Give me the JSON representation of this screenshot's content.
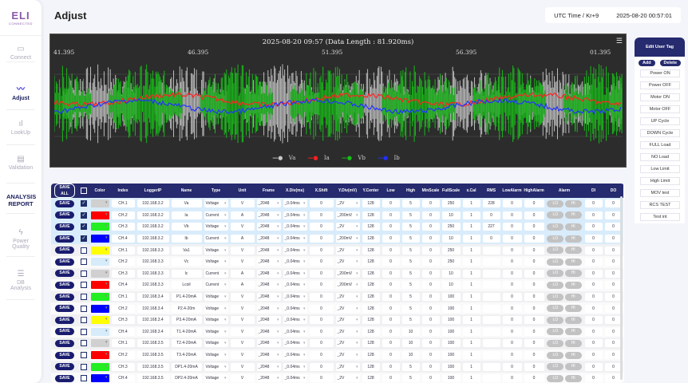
{
  "app": {
    "logo": "ELI",
    "logo_sub": "CONNECTED",
    "title": "Adjust"
  },
  "sidebar": [
    {
      "label": "Connect",
      "icon": "router-icon"
    },
    {
      "label": "Adjust",
      "icon": "waveform-icon",
      "active": true
    },
    {
      "label": "LookUp",
      "icon": "bar-chart-icon"
    },
    {
      "label": "Validation",
      "icon": "document-check-icon"
    },
    {
      "label": "ANALYSIS REPORT",
      "icon": ""
    },
    {
      "label": "Power Quality",
      "icon": "lightning-icon"
    },
    {
      "label": "DB Analysis",
      "icon": "database-icon"
    }
  ],
  "header": {
    "tz_label": "UTC Time / Kr+9",
    "datetime": "2025-08-20 00:57:01"
  },
  "chart": {
    "title": "2025-08-20 09:57 (Data Length : 81.920ms)",
    "x_ticks": [
      "41.395",
      "46.395",
      "51.395",
      "56.395",
      "01.395"
    ],
    "legend": [
      {
        "name": "Va",
        "color": "#c8c8c8"
      },
      {
        "name": "Ia",
        "color": "#ff2020"
      },
      {
        "name": "Vb",
        "color": "#18c018"
      },
      {
        "name": "Ib",
        "color": "#2030ff"
      }
    ],
    "menu_icon": "hamburger-icon"
  },
  "tags": {
    "title": "Edit User Tag",
    "add": "Add",
    "delete": "Delete",
    "items": [
      "Power ON",
      "Power OFF",
      "Motor ON",
      "Motor OFF",
      "UP Cycle",
      "DOWN Cycle",
      "FULL Load",
      "NO Load",
      "Low Limit",
      "High Limit",
      "MOV test",
      "RCS TEST",
      "Test int"
    ]
  },
  "table": {
    "save_all": "SAVE ALL",
    "save": "SAVE",
    "lo": "LO",
    "hi": "HI",
    "headers": [
      "Color",
      "Index",
      "LoggerIP",
      "Name",
      "Type",
      "Unit",
      "Frame",
      "X.Div(ms)",
      "X.Shift",
      "Y.Div(mV)",
      "Y.Center",
      "Low",
      "High",
      "MinScale",
      "FullScale",
      "x.Cal",
      "RMS",
      "LowAlarm",
      "HighAlarm",
      "Alarm",
      "DI",
      "DO"
    ],
    "rows": [
      {
        "checked": true,
        "color": "#d0d0d0",
        "index": "CH.1",
        "ip": "192.168.3.2",
        "name": "Va",
        "type": "Voltage",
        "unit": "V",
        "frame": "_2048",
        "xdiv": "_0.04ms",
        "xshift": "0",
        "ydiv": "_2V",
        "ycenter": "128",
        "low": "0",
        "high": "5",
        "min": "0",
        "full": "250",
        "xcal": "1",
        "rms": "228",
        "lowalarm": "0",
        "highalarm": "0",
        "di": "0",
        "do": "0"
      },
      {
        "checked": true,
        "color": "#ff0000",
        "index": "CH.2",
        "ip": "192.168.3.2",
        "name": "Ia",
        "type": "Current",
        "unit": "A",
        "frame": "_2048",
        "xdiv": "_0.04ms",
        "xshift": "0",
        "ydiv": "_200mV",
        "ycenter": "128",
        "low": "0",
        "high": "5",
        "min": "0",
        "full": "10",
        "xcal": "1",
        "rms": "0",
        "lowalarm": "0",
        "highalarm": "0",
        "di": "0",
        "do": "0"
      },
      {
        "checked": true,
        "color": "#22ee22",
        "index": "CH.3",
        "ip": "192.168.3.2",
        "name": "Vb",
        "type": "Voltage",
        "unit": "V",
        "frame": "_2048",
        "xdiv": "_0.04ms",
        "xshift": "0",
        "ydiv": "_2V",
        "ycenter": "128",
        "low": "0",
        "high": "5",
        "min": "0",
        "full": "250",
        "xcal": "1",
        "rms": "227",
        "lowalarm": "0",
        "highalarm": "0",
        "di": "0",
        "do": "0"
      },
      {
        "checked": true,
        "color": "#0000ff",
        "index": "CH.4",
        "ip": "192.168.3.2",
        "name": "Ib",
        "type": "Current",
        "unit": "A",
        "frame": "_2048",
        "xdiv": "_0.04ms",
        "xshift": "0",
        "ydiv": "_200mV",
        "ycenter": "128",
        "low": "0",
        "high": "5",
        "min": "0",
        "full": "10",
        "xcal": "1",
        "rms": "0",
        "lowalarm": "0",
        "highalarm": "0",
        "di": "0",
        "do": "0"
      },
      {
        "checked": false,
        "color": "#ffff00",
        "index": "CH.1",
        "ip": "192.168.3.3",
        "name": "Va1",
        "type": "Voltage",
        "unit": "V",
        "frame": "_2048",
        "xdiv": "_0.04ms",
        "xshift": "0",
        "ydiv": "_2V",
        "ycenter": "128",
        "low": "0",
        "high": "5",
        "min": "0",
        "full": "250",
        "xcal": "1",
        "rms": "",
        "lowalarm": "0",
        "highalarm": "0",
        "di": "0",
        "do": "0"
      },
      {
        "checked": false,
        "color": "#d6ecfb",
        "index": "CH.2",
        "ip": "192.168.3.3",
        "name": "Vc",
        "type": "Voltage",
        "unit": "V",
        "frame": "_2048",
        "xdiv": "_0.04ms",
        "xshift": "0",
        "ydiv": "_2V",
        "ycenter": "128",
        "low": "0",
        "high": "5",
        "min": "0",
        "full": "250",
        "xcal": "1",
        "rms": "",
        "lowalarm": "0",
        "highalarm": "0",
        "di": "0",
        "do": "0"
      },
      {
        "checked": false,
        "color": "#d0d0d0",
        "index": "CH.3",
        "ip": "192.168.3.3",
        "name": "Ic",
        "type": "Current",
        "unit": "A",
        "frame": "_2048",
        "xdiv": "_0.04ms",
        "xshift": "0",
        "ydiv": "_200mV",
        "ycenter": "128",
        "low": "0",
        "high": "5",
        "min": "0",
        "full": "10",
        "xcal": "1",
        "rms": "",
        "lowalarm": "0",
        "highalarm": "0",
        "di": "0",
        "do": "0"
      },
      {
        "checked": false,
        "color": "#ff0000",
        "index": "CH.4",
        "ip": "192.168.3.3",
        "name": "Lcoil",
        "type": "Current",
        "unit": "A",
        "frame": "_2048",
        "xdiv": "_0.04ms",
        "xshift": "0",
        "ydiv": "_200mV",
        "ycenter": "128",
        "low": "0",
        "high": "5",
        "min": "0",
        "full": "10",
        "xcal": "1",
        "rms": "",
        "lowalarm": "0",
        "highalarm": "0",
        "di": "0",
        "do": "0"
      },
      {
        "checked": false,
        "color": "#22ee22",
        "index": "CH.1",
        "ip": "192.168.3.4",
        "name": "P1.4-20mA",
        "type": "Voltage",
        "unit": "V",
        "frame": "_2048",
        "xdiv": "_0.04ms",
        "xshift": "0",
        "ydiv": "_2V",
        "ycenter": "128",
        "low": "0",
        "high": "5",
        "min": "0",
        "full": "100",
        "xcal": "1",
        "rms": "",
        "lowalarm": "0",
        "highalarm": "0",
        "di": "0",
        "do": "0"
      },
      {
        "checked": false,
        "color": "#0000ff",
        "index": "CH.2",
        "ip": "192.168.3.4",
        "name": "P2.4-20m",
        "type": "Voltage",
        "unit": "V",
        "frame": "_2048",
        "xdiv": "_0.04ms",
        "xshift": "0",
        "ydiv": "_2V",
        "ycenter": "128",
        "low": "0",
        "high": "5",
        "min": "0",
        "full": "100",
        "xcal": "1",
        "rms": "",
        "lowalarm": "0",
        "highalarm": "0",
        "di": "0",
        "do": "0"
      },
      {
        "checked": false,
        "color": "#ffff00",
        "index": "CH.3",
        "ip": "192.168.3.4",
        "name": "P3.4-20mA",
        "type": "Voltage",
        "unit": "V",
        "frame": "_2048",
        "xdiv": "_0.04ms",
        "xshift": "0",
        "ydiv": "_2V",
        "ycenter": "128",
        "low": "0",
        "high": "5",
        "min": "0",
        "full": "100",
        "xcal": "1",
        "rms": "",
        "lowalarm": "0",
        "highalarm": "0",
        "di": "0",
        "do": "0"
      },
      {
        "checked": false,
        "color": "#d6ecfb",
        "index": "CH.4",
        "ip": "192.168.3.4",
        "name": "T1.4-20mA",
        "type": "Voltage",
        "unit": "V",
        "frame": "_2048",
        "xdiv": "_0.04ms",
        "xshift": "0",
        "ydiv": "_2V",
        "ycenter": "128",
        "low": "0",
        "high": "10",
        "min": "0",
        "full": "100",
        "xcal": "1",
        "rms": "",
        "lowalarm": "0",
        "highalarm": "0",
        "di": "0",
        "do": "0"
      },
      {
        "checked": false,
        "color": "#d0d0d0",
        "index": "CH.1",
        "ip": "192.168.3.5",
        "name": "T2.4-20mA",
        "type": "Voltage",
        "unit": "V",
        "frame": "_2048",
        "xdiv": "_0.04ms",
        "xshift": "0",
        "ydiv": "_2V",
        "ycenter": "128",
        "low": "0",
        "high": "10",
        "min": "0",
        "full": "100",
        "xcal": "1",
        "rms": "",
        "lowalarm": "0",
        "highalarm": "0",
        "di": "0",
        "do": "0"
      },
      {
        "checked": false,
        "color": "#ff0000",
        "index": "CH.2",
        "ip": "192.168.3.5",
        "name": "T3.4-20mA",
        "type": "Voltage",
        "unit": "V",
        "frame": "_2048",
        "xdiv": "_0.04ms",
        "xshift": "0",
        "ydiv": "_2V",
        "ycenter": "128",
        "low": "0",
        "high": "10",
        "min": "0",
        "full": "100",
        "xcal": "1",
        "rms": "",
        "lowalarm": "0",
        "highalarm": "0",
        "di": "0",
        "do": "0"
      },
      {
        "checked": false,
        "color": "#22ee22",
        "index": "CH.3",
        "ip": "192.168.3.5",
        "name": "DP1.4-20mA",
        "type": "Voltage",
        "unit": "V",
        "frame": "_2048",
        "xdiv": "_0.04ms",
        "xshift": "0",
        "ydiv": "_2V",
        "ycenter": "128",
        "low": "0",
        "high": "5",
        "min": "0",
        "full": "100",
        "xcal": "1",
        "rms": "",
        "lowalarm": "0",
        "highalarm": "0",
        "di": "0",
        "do": "0"
      },
      {
        "checked": false,
        "color": "#0000ff",
        "index": "CH.4",
        "ip": "192.168.3.5",
        "name": "DP2.4-20mA",
        "type": "Voltage",
        "unit": "V",
        "frame": "_2048",
        "xdiv": "_0.04ms",
        "xshift": "0",
        "ydiv": "_2V",
        "ycenter": "128",
        "low": "0",
        "high": "5",
        "min": "0",
        "full": "100",
        "xcal": "1",
        "rms": "",
        "lowalarm": "0",
        "highalarm": "0",
        "di": "0",
        "do": "0"
      }
    ]
  }
}
